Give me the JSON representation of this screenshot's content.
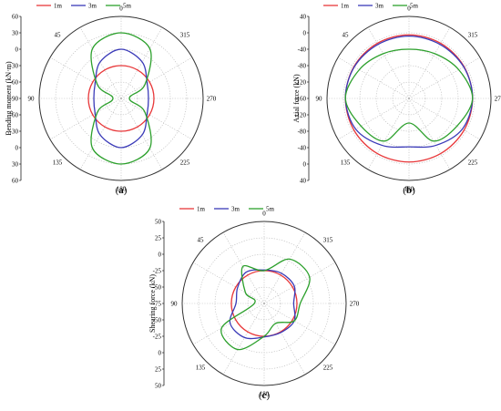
{
  "colors": {
    "1m": "#e8383a",
    "3m": "#3a3ab8",
    "5m": "#2ca02c"
  },
  "chart_data": [
    {
      "type": "line",
      "projection": "polar",
      "panel": "(a)",
      "panel_letter": "a",
      "ylabel": "Bending moment (kN·m)",
      "angle_labels": [
        "0",
        "45",
        "90",
        "135",
        "180",
        "225",
        "270",
        "315"
      ],
      "radial_ticks": [
        "60",
        "30",
        "0",
        "-30",
        "-60",
        "-90",
        "-60",
        "-30",
        "0",
        "30",
        "60"
      ],
      "rlim": [
        -90,
        60
      ],
      "legend": [
        "1m",
        "3m",
        "5m"
      ],
      "angles_deg": [
        0,
        30,
        60,
        90,
        120,
        150,
        180,
        210,
        240,
        270,
        300,
        330
      ],
      "series": [
        {
          "name": "1m",
          "values": [
            -30,
            -30,
            -30,
            -30,
            -30,
            -30,
            -30,
            -30,
            -30,
            -30,
            -30,
            -30
          ]
        },
        {
          "name": "3m",
          "values": [
            0,
            -13,
            -35,
            -40,
            -35,
            -13,
            0,
            -13,
            -35,
            -40,
            -35,
            -13
          ]
        },
        {
          "name": "5m",
          "values": [
            30,
            15,
            -40,
            -75,
            -40,
            15,
            30,
            15,
            -40,
            -75,
            -40,
            15
          ]
        }
      ]
    },
    {
      "type": "line",
      "projection": "polar",
      "panel": "(b)",
      "panel_letter": "b",
      "ylabel": "Axial force (kN)",
      "angle_labels": [
        "0",
        "45",
        "90",
        "135",
        "180",
        "225",
        "270",
        "315"
      ],
      "radial_ticks": [
        "40",
        "0",
        "-40",
        "-80",
        "-120",
        "-160",
        "-120",
        "-80",
        "-40",
        "0",
        "40"
      ],
      "rlim": [
        -160,
        40
      ],
      "legend": [
        "1m",
        "3m",
        "5m"
      ],
      "angles_deg": [
        0,
        30,
        60,
        90,
        120,
        150,
        180,
        210,
        240,
        270,
        300,
        330
      ],
      "series": [
        {
          "name": "1m",
          "values": [
            -5,
            -5,
            -5,
            -5,
            -5,
            -5,
            -5,
            -5,
            -5,
            -5,
            -5,
            -5
          ]
        },
        {
          "name": "3m",
          "values": [
            -8,
            -8,
            -6,
            -5,
            -10,
            -28,
            -42,
            -28,
            -10,
            -5,
            -6,
            -8
          ]
        },
        {
          "name": "5m",
          "values": [
            -40,
            -34,
            -20,
            -5,
            -25,
            -40,
            -100,
            -40,
            -25,
            -5,
            -20,
            -34
          ]
        }
      ]
    },
    {
      "type": "line",
      "projection": "polar",
      "panel": "(c)",
      "panel_letter": "c",
      "ylabel": "Shearing force (kN)",
      "angle_labels": [
        "0",
        "45",
        "90",
        "135",
        "180",
        "225",
        "270",
        "315"
      ],
      "radial_ticks": [
        "50",
        "25",
        "0",
        "-25",
        "-50",
        "-75",
        "-50",
        "-25",
        "0",
        "25",
        "50"
      ],
      "rlim": [
        -75,
        50
      ],
      "legend": [
        "1m",
        "3m",
        "5m"
      ],
      "angles_deg": [
        0,
        30,
        60,
        90,
        120,
        150,
        180,
        210,
        240,
        270,
        300,
        330
      ],
      "series": [
        {
          "name": "1m",
          "values": [
            -25,
            -25,
            -25,
            -25,
            -25,
            -25,
            -25,
            -25,
            -25,
            -25,
            -25,
            -25
          ]
        },
        {
          "name": "3m",
          "values": [
            -24,
            -20,
            -28,
            -32,
            -15,
            -15,
            -24,
            -24,
            -22,
            -30,
            -22,
            -22
          ]
        },
        {
          "name": "5m",
          "values": [
            -25,
            -10,
            -42,
            -60,
            0,
            6,
            -25,
            -40,
            -22,
            -20,
            5,
            3
          ]
        }
      ]
    }
  ]
}
